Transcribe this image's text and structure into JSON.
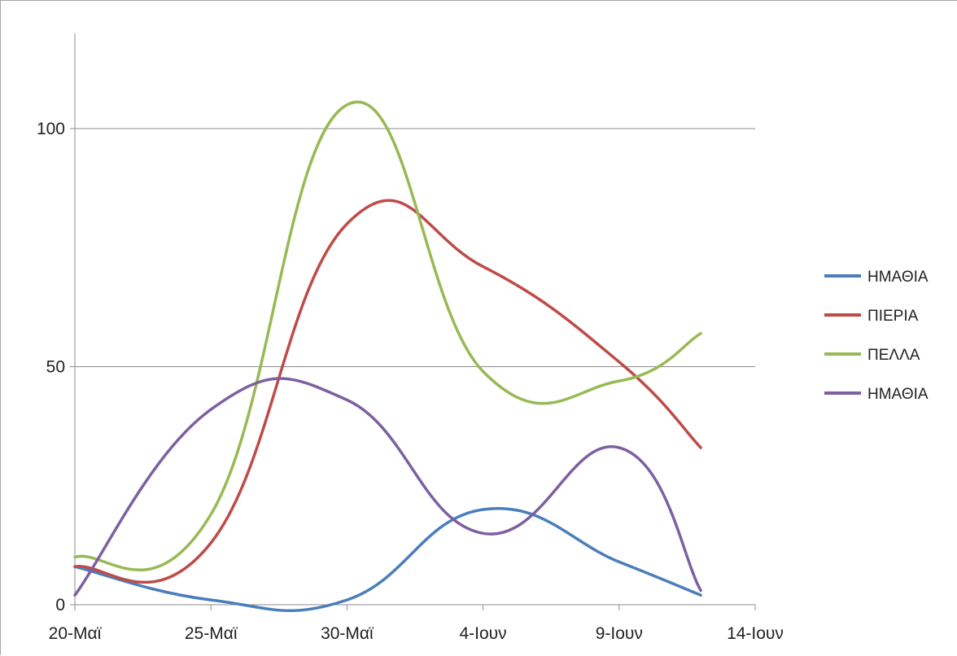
{
  "chart_data": {
    "type": "line",
    "x_ticks": [
      "20-Μαϊ",
      "25-Μαϊ",
      "30-Μαϊ",
      "4-Ιουν",
      "9-Ιουν",
      "14-Ιουν"
    ],
    "x_data": [
      "20-Μαϊ",
      "25-Μαϊ",
      "30-Μαϊ",
      "4-Ιουν",
      "9-Ιουν",
      "12-Ιουν"
    ],
    "x_dates": [
      "2000-05-20",
      "2000-05-25",
      "2000-05-30",
      "2000-06-04",
      "2000-06-09",
      "2000-06-12"
    ],
    "xlim": [
      "2000-05-20",
      "2000-06-14"
    ],
    "y_ticks": [
      0,
      50,
      100
    ],
    "ylim": [
      0,
      120
    ],
    "grid": true,
    "legend_position": "right",
    "series": [
      {
        "name": "ΗΜΑΘΙΑ",
        "color": "#4a7ebb",
        "values": [
          8,
          1,
          1,
          20,
          9,
          2
        ]
      },
      {
        "name": "ΠΙΕΡΙΑ",
        "color": "#be4b48",
        "values": [
          8,
          13,
          80,
          71,
          51,
          33
        ]
      },
      {
        "name": "ΠΕΛΛΑ",
        "color": "#98b954",
        "values": [
          10,
          19,
          105,
          49,
          47,
          57
        ]
      },
      {
        "name": "ΗΜΑΘΙΑ",
        "color": "#7d60a0",
        "values": [
          2,
          41,
          43,
          15,
          33,
          3
        ]
      }
    ]
  }
}
